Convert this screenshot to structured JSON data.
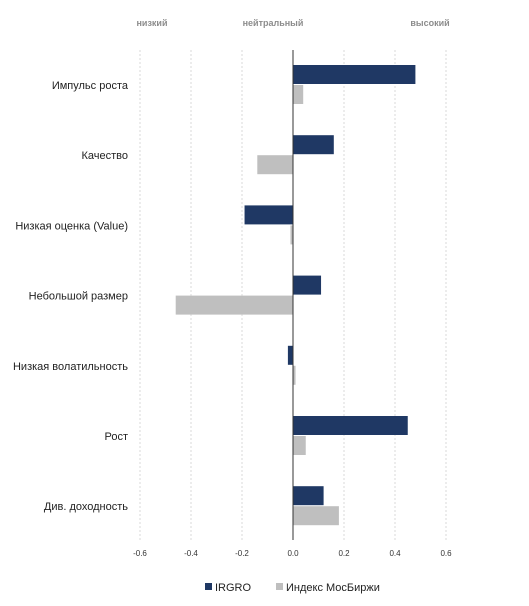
{
  "chart_data": {
    "type": "bar",
    "orientation": "horizontal",
    "top_labels": [
      "низкий",
      "нейтральный",
      "высокий"
    ],
    "categories": [
      "Импульс роста",
      "Качество",
      "Низкая оценка (Value)",
      "Небольшой размер",
      "Низкая волатильность",
      "Рост",
      "Див. доходность"
    ],
    "series": [
      {
        "name": "IRGRO",
        "color": "#1f3864",
        "values": [
          0.48,
          0.16,
          -0.19,
          0.11,
          -0.02,
          0.45,
          0.12
        ]
      },
      {
        "name": "Индекс МосБиржи",
        "color": "#bfbfbf",
        "values": [
          0.04,
          -0.14,
          -0.01,
          -0.46,
          0.01,
          0.05,
          0.18
        ]
      }
    ],
    "xlim": [
      -0.6,
      0.6
    ],
    "xticks": [
      "-0.6",
      "-0.4",
      "-0.2",
      "0.0",
      "0.2",
      "0.4",
      "0.6"
    ],
    "legend_position": "bottom",
    "grid": "vertical-dashed"
  }
}
